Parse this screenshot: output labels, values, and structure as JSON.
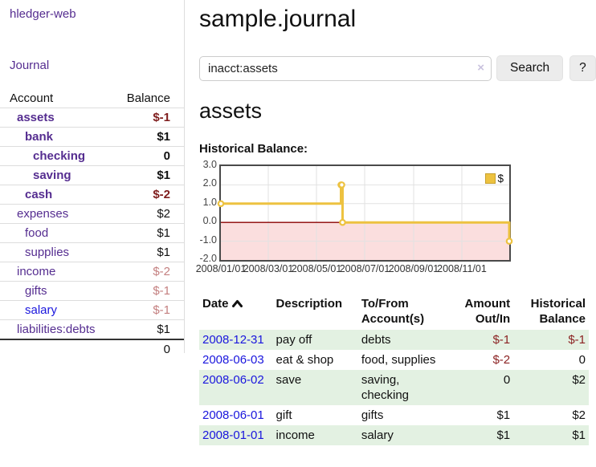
{
  "sidebar": {
    "brand": "hledger-web",
    "journal_link": "Journal",
    "account_header": "Account",
    "balance_header": "Balance",
    "accounts": [
      {
        "name": "assets",
        "balance": "$-1"
      },
      {
        "name": "bank",
        "balance": "$1"
      },
      {
        "name": "checking",
        "balance": "0"
      },
      {
        "name": "saving",
        "balance": "$1"
      },
      {
        "name": "cash",
        "balance": "$-2"
      },
      {
        "name": "expenses",
        "balance": "$2"
      },
      {
        "name": "food",
        "balance": "$1"
      },
      {
        "name": "supplies",
        "balance": "$1"
      },
      {
        "name": "income",
        "balance": "$-2"
      },
      {
        "name": "gifts",
        "balance": "$-1"
      },
      {
        "name": "salary",
        "balance": "$-1"
      },
      {
        "name": "liabilities:debts",
        "balance": "$1"
      }
    ],
    "total": "0"
  },
  "main": {
    "title": "sample.journal",
    "search": {
      "value": "inacct:assets",
      "clear_icon": "×",
      "button": "Search",
      "help_button": "?"
    },
    "account_title": "assets",
    "section_label": "Historical Balance:"
  },
  "chart_data": {
    "type": "line",
    "step": true,
    "title": "Historical Balance",
    "legend_label": "$",
    "legend_position": "top-right",
    "grid": true,
    "ylim": [
      -2,
      3
    ],
    "x_range_days": [
      0,
      365
    ],
    "series": [
      {
        "name": "$",
        "dates": [
          "2008-01-01",
          "2008-06-01",
          "2008-06-02",
          "2008-06-03",
          "2008-12-31"
        ],
        "x_days": [
          0,
          152,
          153,
          154,
          365
        ],
        "values": [
          1,
          2,
          2,
          0,
          -1
        ]
      }
    ],
    "yticks": [
      {
        "label": "3.0",
        "value": 3
      },
      {
        "label": "2.0",
        "value": 2
      },
      {
        "label": "1.0",
        "value": 1
      },
      {
        "label": "0.0",
        "value": 0
      },
      {
        "label": "-1.0",
        "value": -1
      },
      {
        "label": "-2.0",
        "value": -2
      }
    ],
    "xticks": [
      {
        "label": "2008/01/01",
        "day": 0
      },
      {
        "label": "2008/03/01",
        "day": 60
      },
      {
        "label": "2008/05/01",
        "day": 121
      },
      {
        "label": "2008/07/01",
        "day": 182
      },
      {
        "label": "2008/09/01",
        "day": 244
      },
      {
        "label": "2008/11/01",
        "day": 305
      }
    ],
    "colors": {
      "line": "#edc240",
      "marker_fill": "#ffffff",
      "negative_area": "#fbdede",
      "zero_line": "#8b0000",
      "grid": "#e2e2e2",
      "plot_border": "#4a4a4a"
    }
  },
  "register": {
    "headers": {
      "date": "Date",
      "description": "Description",
      "accounts": "To/From Account(s)",
      "amount": "Amount Out/In",
      "balance": "Historical Balance"
    },
    "rows": [
      {
        "date": "2008-12-31",
        "description": "pay off",
        "accounts": "debts",
        "amount": "$-1",
        "balance": "$-1"
      },
      {
        "date": "2008-06-03",
        "description": "eat & shop",
        "accounts": "food, supplies",
        "amount": "$-2",
        "balance": "0"
      },
      {
        "date": "2008-06-02",
        "description": "save",
        "accounts": "saving, checking",
        "amount": "0",
        "balance": "$2"
      },
      {
        "date": "2008-06-01",
        "description": "gift",
        "accounts": "gifts",
        "amount": "$1",
        "balance": "$2"
      },
      {
        "date": "2008-01-01",
        "description": "income",
        "accounts": "salary",
        "amount": "$1",
        "balance": "$1"
      }
    ]
  }
}
